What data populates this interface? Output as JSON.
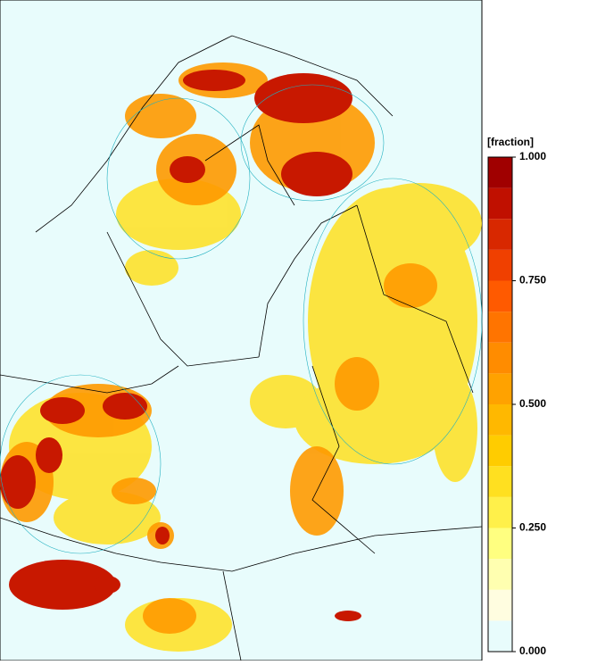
{
  "colorbar": {
    "title": "[fraction]",
    "levels": [
      0,
      0.0625,
      0.125,
      0.1875,
      0.25,
      0.3125,
      0.375,
      0.4375,
      0.5,
      0.5625,
      0.625,
      0.6875,
      0.75,
      0.8125,
      0.875,
      0.9375,
      1
    ],
    "colors": [
      "#e8fcfc",
      "#fffde0",
      "#ffffb0",
      "#ffff80",
      "#fff04a",
      "#ffe020",
      "#ffcc00",
      "#ffb800",
      "#ffa200",
      "#ff8c00",
      "#ff7400",
      "#ff5a00",
      "#f04000",
      "#d82800",
      "#c01000",
      "#a00000"
    ],
    "ticks": [
      {
        "value": 0,
        "label": "0.000"
      },
      {
        "value": 0.25,
        "label": "0.250"
      },
      {
        "value": 0.5,
        "label": "0.500"
      },
      {
        "value": 0.75,
        "label": "0.750"
      },
      {
        "value": 1,
        "label": "1.000"
      }
    ]
  }
}
